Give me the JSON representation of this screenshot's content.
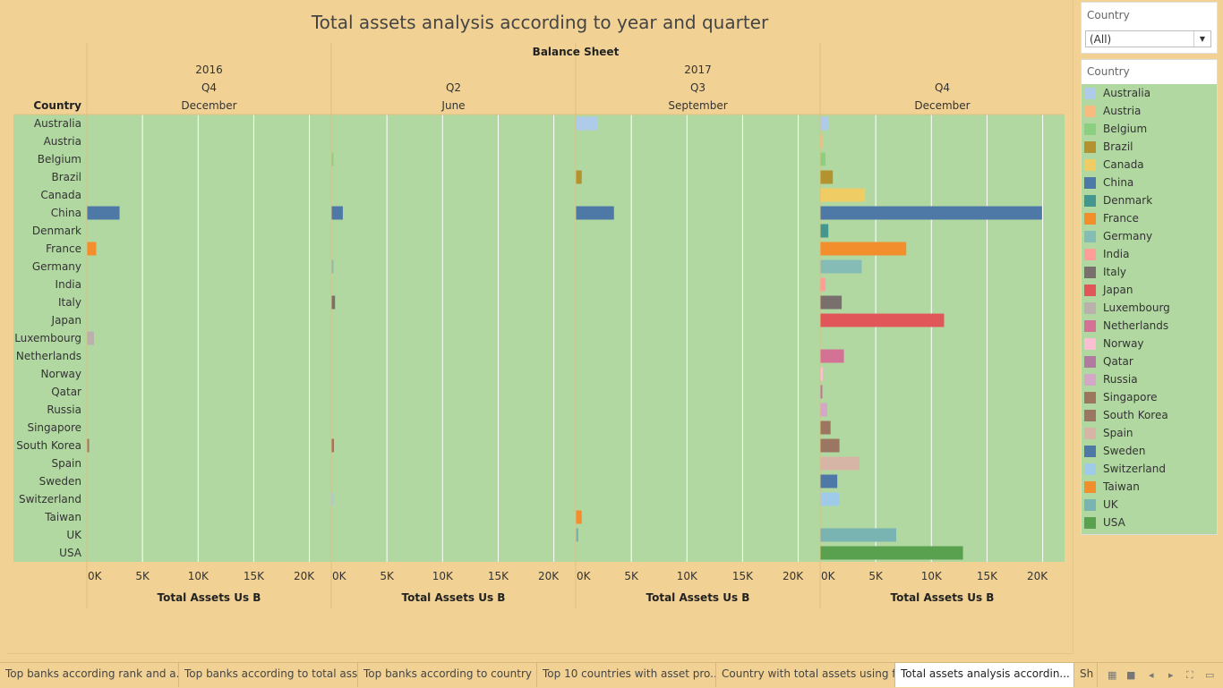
{
  "title": "Total assets analysis according to year and quarter",
  "filter": {
    "title": "Country",
    "value": "(All)"
  },
  "legend": {
    "title": "Country"
  },
  "tabs": [
    {
      "label": "Top banks according rank and a...",
      "active": false
    },
    {
      "label": "Top banks according to total ass...",
      "active": false
    },
    {
      "label": "Top banks according to country ...",
      "active": false
    },
    {
      "label": "Top 10 countries with asset pro...",
      "active": false
    },
    {
      "label": "Country with total assets using f...",
      "active": false
    },
    {
      "label": "Total assets analysis accordin...",
      "active": true
    },
    {
      "label": "Sh",
      "active": false
    }
  ],
  "colors": {
    "Australia": "#aecbea",
    "Austria": "#f7bb80",
    "Belgium": "#8ccf80",
    "Brazil": "#b29330",
    "Canada": "#f0cd64",
    "China": "#4e79a7",
    "Denmark": "#44978f",
    "France": "#f28e2b",
    "Germany": "#86bcb6",
    "India": "#ff9d9a",
    "Italy": "#79706e",
    "Japan": "#e15759",
    "Luxembourg": "#bab0ac",
    "Netherlands": "#d37295",
    "Norway": "#fabfd2",
    "Qatar": "#b07aa1",
    "Russia": "#d4a6c8",
    "Singapore": "#9d7660",
    "South Korea": "#9b7662",
    "Spain": "#d7b5a6",
    "Sweden": "#4e79a7",
    "Switzerland": "#a0cbe8",
    "Taiwan": "#f28e2b",
    "UK": "#79b4b3",
    "USA": "#59a14f"
  },
  "chart_data": {
    "type": "bar",
    "orientation": "horizontal",
    "header_title": "Balance Sheet",
    "row_header": "Country",
    "categories": [
      "Australia",
      "Austria",
      "Belgium",
      "Brazil",
      "Canada",
      "China",
      "Denmark",
      "France",
      "Germany",
      "India",
      "Italy",
      "Japan",
      "Luxembourg",
      "Netherlands",
      "Norway",
      "Qatar",
      "Russia",
      "Singapore",
      "South Korea",
      "Spain",
      "Sweden",
      "Switzerland",
      "Taiwan",
      "UK",
      "USA"
    ],
    "years": [
      {
        "label": "2016",
        "panels": 1
      },
      {
        "label": "2017",
        "panels": 3
      }
    ],
    "panels": [
      {
        "year": "2016",
        "quarter": "Q4",
        "month": "December",
        "values": [
          0,
          0,
          0,
          0,
          0,
          2900,
          0,
          800,
          0,
          0,
          0,
          0,
          600,
          0,
          0,
          0,
          0,
          0,
          100,
          0,
          0,
          0,
          0,
          0,
          0
        ]
      },
      {
        "year": "2017",
        "quarter": "Q2",
        "month": "June",
        "values": [
          0,
          0,
          100,
          0,
          0,
          1000,
          0,
          0,
          100,
          0,
          300,
          0,
          0,
          0,
          0,
          0,
          0,
          0,
          200,
          0,
          0,
          100,
          0,
          0,
          0
        ]
      },
      {
        "year": "2017",
        "quarter": "Q3",
        "month": "September",
        "values": [
          1900,
          0,
          0,
          500,
          0,
          3400,
          0,
          0,
          0,
          0,
          0,
          0,
          0,
          0,
          0,
          0,
          0,
          0,
          0,
          0,
          0,
          0,
          500,
          200,
          0
        ]
      },
      {
        "year": "2017",
        "quarter": "Q4",
        "month": "December",
        "values": [
          700,
          150,
          450,
          1100,
          4000,
          19900,
          700,
          7700,
          3700,
          450,
          1900,
          11100,
          0,
          2100,
          200,
          150,
          600,
          900,
          1700,
          3500,
          1500,
          1700,
          0,
          6800,
          12800
        ]
      }
    ],
    "xlabel": "Total Assets Us B",
    "xlim": [
      0,
      21000
    ],
    "xticks": [
      0,
      5000,
      10000,
      15000,
      20000
    ],
    "xtick_labels": [
      "0K",
      "5K",
      "10K",
      "15K",
      "20K"
    ],
    "grid": true,
    "legend_position": "right"
  }
}
